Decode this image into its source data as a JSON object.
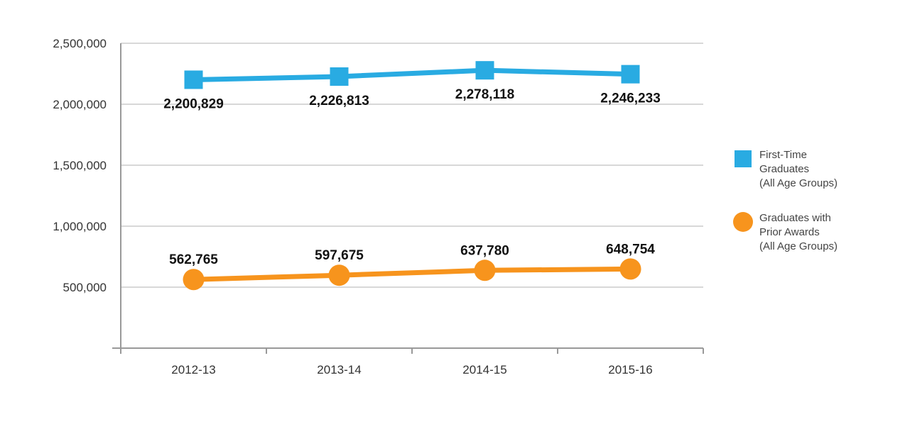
{
  "chart_data": {
    "type": "line",
    "title": "",
    "xlabel": "",
    "ylabel": "",
    "categories": [
      "2012-13",
      "2013-14",
      "2014-15",
      "2015-16"
    ],
    "ylim": [
      0,
      2500000
    ],
    "yticks": [
      500000,
      1000000,
      1500000,
      2000000,
      2500000
    ],
    "ytick_labels": [
      "500,000",
      "1,000,000",
      "1,500,000",
      "2,000,000",
      "2,500,000"
    ],
    "grid": true,
    "legend_position": "right",
    "series": [
      {
        "key": "first_time",
        "legend_lines": [
          "First-Time",
          "Graduates",
          "(All Age Groups)"
        ],
        "color": "#29abe2",
        "marker": "square",
        "values": [
          2200829,
          2226813,
          2278118,
          2246233
        ],
        "labels": [
          "2,200,829",
          "2,226,813",
          "2,278,118",
          "2,246,233"
        ],
        "label_position": "below"
      },
      {
        "key": "prior_awards",
        "legend_lines": [
          "Graduates with",
          "Prior Awards",
          "(All Age Groups)"
        ],
        "color": "#f7941d",
        "marker": "circle",
        "values": [
          562765,
          597675,
          637780,
          648754
        ],
        "labels": [
          "562,765",
          "597,675",
          "637,780",
          "648,754"
        ],
        "label_position": "above"
      }
    ]
  }
}
